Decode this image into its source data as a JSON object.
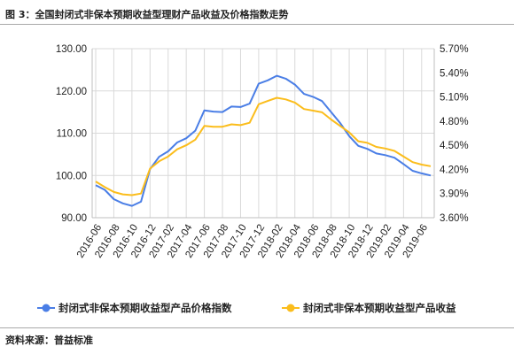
{
  "figure": {
    "title": "图 3：全国封闭式非保本预期收益型理财产品收益及价格指数走势",
    "source": "资料来源：普益标准"
  },
  "chart_data": {
    "type": "line",
    "x": [
      "2016-06",
      "2016-07",
      "2016-08",
      "2016-09",
      "2016-10",
      "2016-11",
      "2016-12",
      "2017-01",
      "2017-02",
      "2017-03",
      "2017-04",
      "2017-05",
      "2017-06",
      "2017-07",
      "2017-08",
      "2017-09",
      "2017-10",
      "2017-11",
      "2017-12",
      "2017-13",
      "2018-02",
      "2018-03",
      "2018-04",
      "2018-05",
      "2018-06",
      "2018-07",
      "2018-08",
      "2018-09",
      "2018-10",
      "2018-11",
      "2018-12",
      "2019-01",
      "2019-02",
      "2019-03",
      "2019-04",
      "2019-05",
      "2019-06",
      "2019-07"
    ],
    "x_tick_labels": [
      "2016-06",
      "2016-08",
      "2016-10",
      "2016-12",
      "2017-02",
      "2017-04",
      "2017-06",
      "2017-08",
      "2017-10",
      "2017-12",
      "2018-02",
      "2018-04",
      "2018-06",
      "2018-08",
      "2018-10",
      "2018-12",
      "2019-02",
      "2019-04",
      "2019-06"
    ],
    "y_left": {
      "ylim": [
        90,
        130
      ],
      "ticks": [
        "90.00",
        "100.00",
        "110.00",
        "120.00",
        "130.00"
      ]
    },
    "y_right": {
      "ylim": [
        3.6,
        5.7
      ],
      "ticks": [
        "3.60%",
        "3.90%",
        "4.20%",
        "4.50%",
        "4.80%",
        "5.10%",
        "5.40%",
        "5.70%"
      ]
    },
    "series": [
      {
        "name": "封闭式非保本预期收益型产品价格指数",
        "axis": "left",
        "color": "#4a7ee6",
        "values": [
          97.7,
          96.6,
          94.4,
          93.4,
          92.8,
          93.8,
          101.5,
          104.4,
          105.7,
          107.8,
          108.8,
          110.6,
          115.4,
          115.1,
          115.0,
          116.3,
          116.2,
          117.0,
          121.7,
          122.5,
          123.6,
          122.9,
          121.5,
          119.3,
          118.6,
          117.6,
          115.0,
          112.4,
          109.3,
          107.0,
          106.3,
          105.2,
          104.8,
          104.2,
          102.7,
          101.1,
          100.5,
          100.0
        ]
      },
      {
        "name": "封闭式非保本预期收益型产品收益",
        "axis": "right",
        "color": "#fbbd1c",
        "values": [
          4.05,
          3.98,
          3.92,
          3.89,
          3.88,
          3.9,
          4.21,
          4.3,
          4.36,
          4.45,
          4.5,
          4.57,
          4.74,
          4.73,
          4.73,
          4.76,
          4.75,
          4.78,
          5.01,
          5.05,
          5.09,
          5.07,
          5.03,
          4.95,
          4.93,
          4.91,
          4.82,
          4.74,
          4.66,
          4.55,
          4.53,
          4.48,
          4.46,
          4.43,
          4.36,
          4.29,
          4.26,
          4.24
        ]
      }
    ],
    "legend": "bottom"
  }
}
